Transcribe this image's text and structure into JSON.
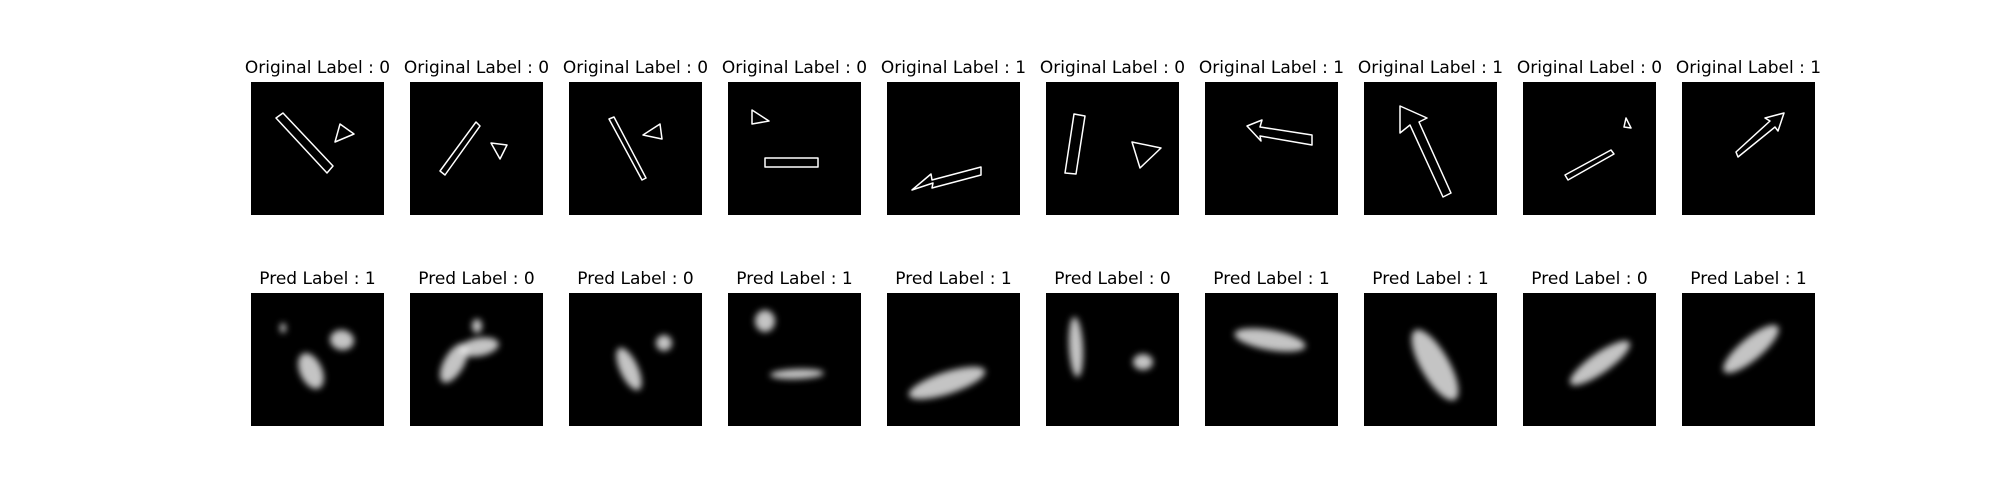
{
  "panels": [
    {
      "original_label": "Original Label : 0",
      "pred_label": "Pred Label : 1"
    },
    {
      "original_label": "Original Label : 0",
      "pred_label": "Pred Label : 0"
    },
    {
      "original_label": "Original Label : 0",
      "pred_label": "Pred Label : 0"
    },
    {
      "original_label": "Original Label : 0",
      "pred_label": "Pred Label : 1"
    },
    {
      "original_label": "Original Label : 1",
      "pred_label": "Pred Label : 1"
    },
    {
      "original_label": "Original Label : 0",
      "pred_label": "Pred Label : 0"
    },
    {
      "original_label": "Original Label : 1",
      "pred_label": "Pred Label : 1"
    },
    {
      "original_label": "Original Label : 1",
      "pred_label": "Pred Label : 1"
    },
    {
      "original_label": "Original Label : 0",
      "pred_label": "Pred Label : 0"
    },
    {
      "original_label": "Original Label : 1",
      "pred_label": "Pred Label : 1"
    }
  ],
  "colors": {
    "tile_background": "#000000",
    "outline": "#ffffff",
    "blob": "#e6e6e6"
  }
}
